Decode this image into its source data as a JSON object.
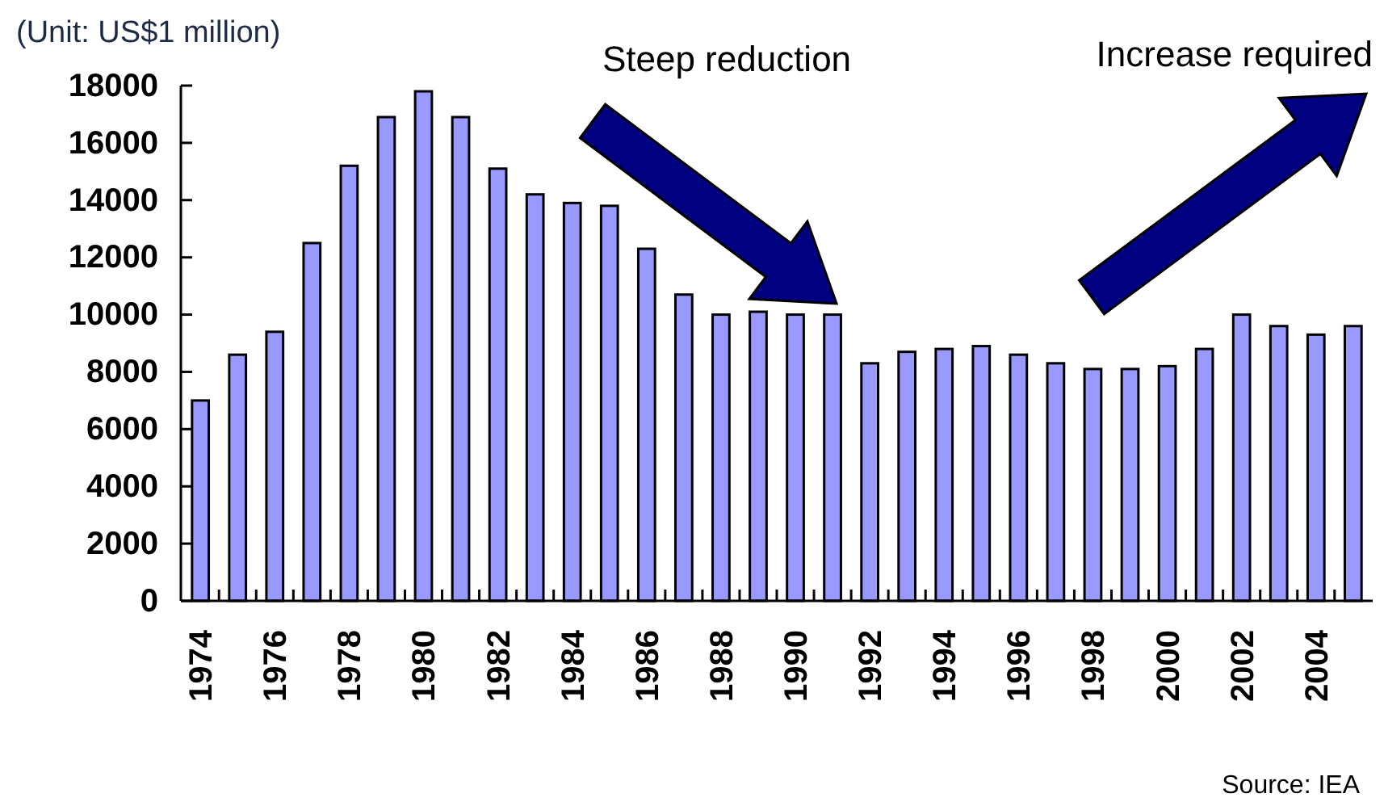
{
  "chart_data": {
    "type": "bar",
    "ylabel": "(Unit: US$1 million)",
    "categories": [
      "1974",
      null,
      "1976",
      null,
      "1978",
      null,
      "1980",
      null,
      "1982",
      null,
      "1984",
      null,
      "1986",
      null,
      "1988",
      null,
      "1990",
      null,
      "1992",
      null,
      "1994",
      null,
      "1996",
      null,
      "1998",
      null,
      "2000",
      null,
      "2002",
      null,
      "2004",
      null
    ],
    "values": [
      7000,
      8600,
      9400,
      12500,
      15200,
      16900,
      17800,
      16900,
      15100,
      14200,
      13900,
      13800,
      12300,
      10700,
      10000,
      10100,
      10000,
      10000,
      8300,
      8700,
      8800,
      8900,
      8600,
      8300,
      8100,
      8100,
      8200,
      8800,
      10000,
      9600,
      9300,
      9600
    ],
    "color": "#9999ff",
    "ylim": [
      0,
      18000
    ],
    "yticks": [
      0,
      2000,
      4000,
      6000,
      8000,
      10000,
      12000,
      14000,
      16000,
      18000
    ],
    "grid": false,
    "annotations": [
      "Steep reduction",
      "Increase required",
      "Source: IEA"
    ]
  }
}
